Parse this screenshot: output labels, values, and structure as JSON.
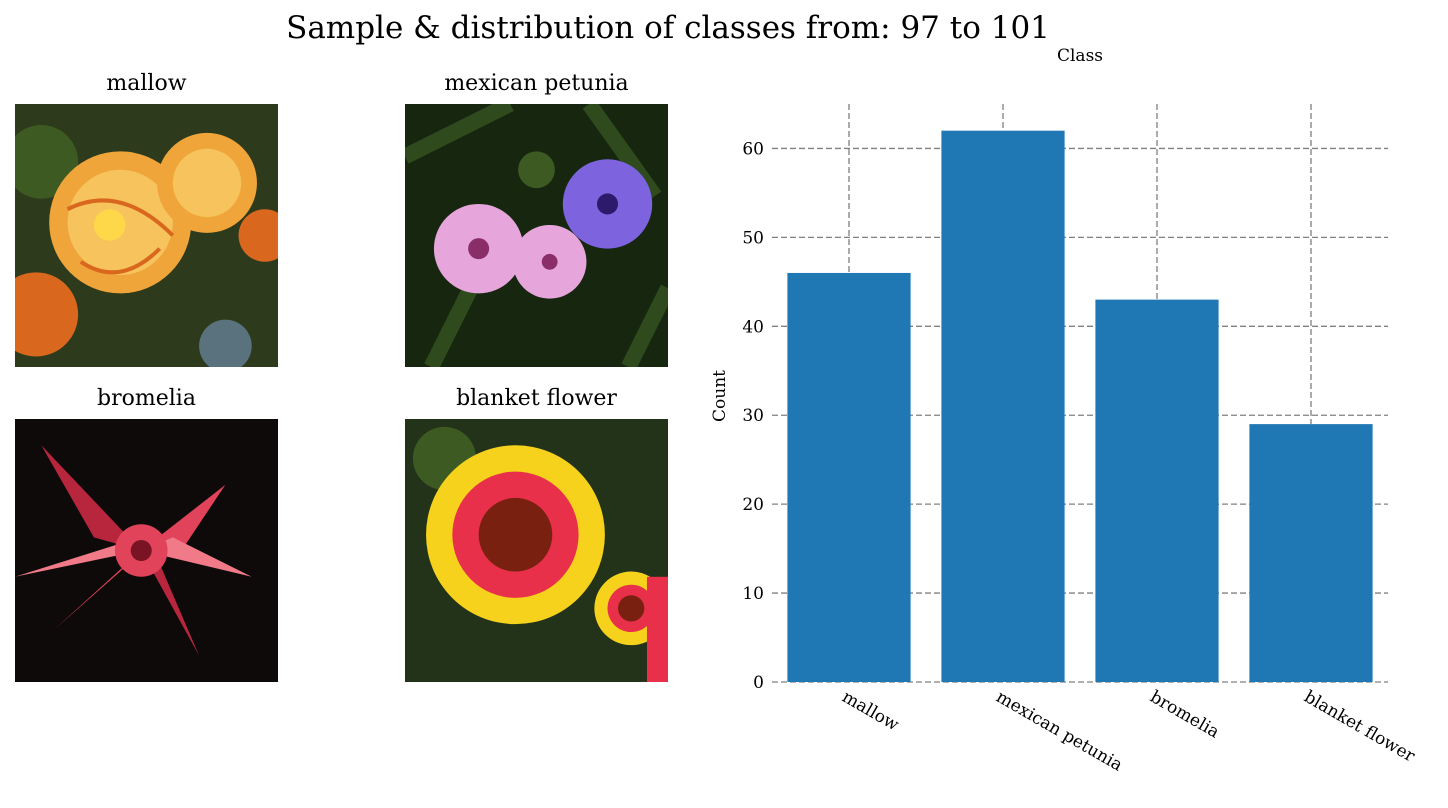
{
  "figure": {
    "suptitle": "Sample & distribution of classes from: 97 to 101"
  },
  "samples": [
    {
      "label": "mallow",
      "palette": [
        "#2d3a1c",
        "#f0a53a",
        "#f6c35c",
        "#d9671e",
        "#ffd84a"
      ]
    },
    {
      "label": "mexican petunia",
      "palette": [
        "#16260f",
        "#e6a6dc",
        "#c77fd0",
        "#7d63de",
        "#2f4a1c"
      ]
    },
    {
      "label": "bromelia",
      "palette": [
        "#0e0a0a",
        "#e0435a",
        "#b8263d",
        "#f07a88",
        "#3a1a1f"
      ]
    },
    {
      "label": "blanket flower",
      "palette": [
        "#22331a",
        "#f6d21c",
        "#e8304a",
        "#7a2010",
        "#3d5a22"
      ]
    }
  ],
  "chart_data": {
    "type": "bar",
    "title": "Class",
    "xlabel": "",
    "ylabel": "Count",
    "categories": [
      "mallow",
      "mexican petunia",
      "bromelia",
      "blanket flower"
    ],
    "values": [
      46,
      62,
      43,
      29
    ],
    "ylim": [
      0,
      65
    ],
    "yticks": [
      0,
      10,
      20,
      30,
      40,
      50,
      60
    ],
    "grid": true,
    "bar_color": "#1f77b4",
    "grid_color": "#808080"
  }
}
